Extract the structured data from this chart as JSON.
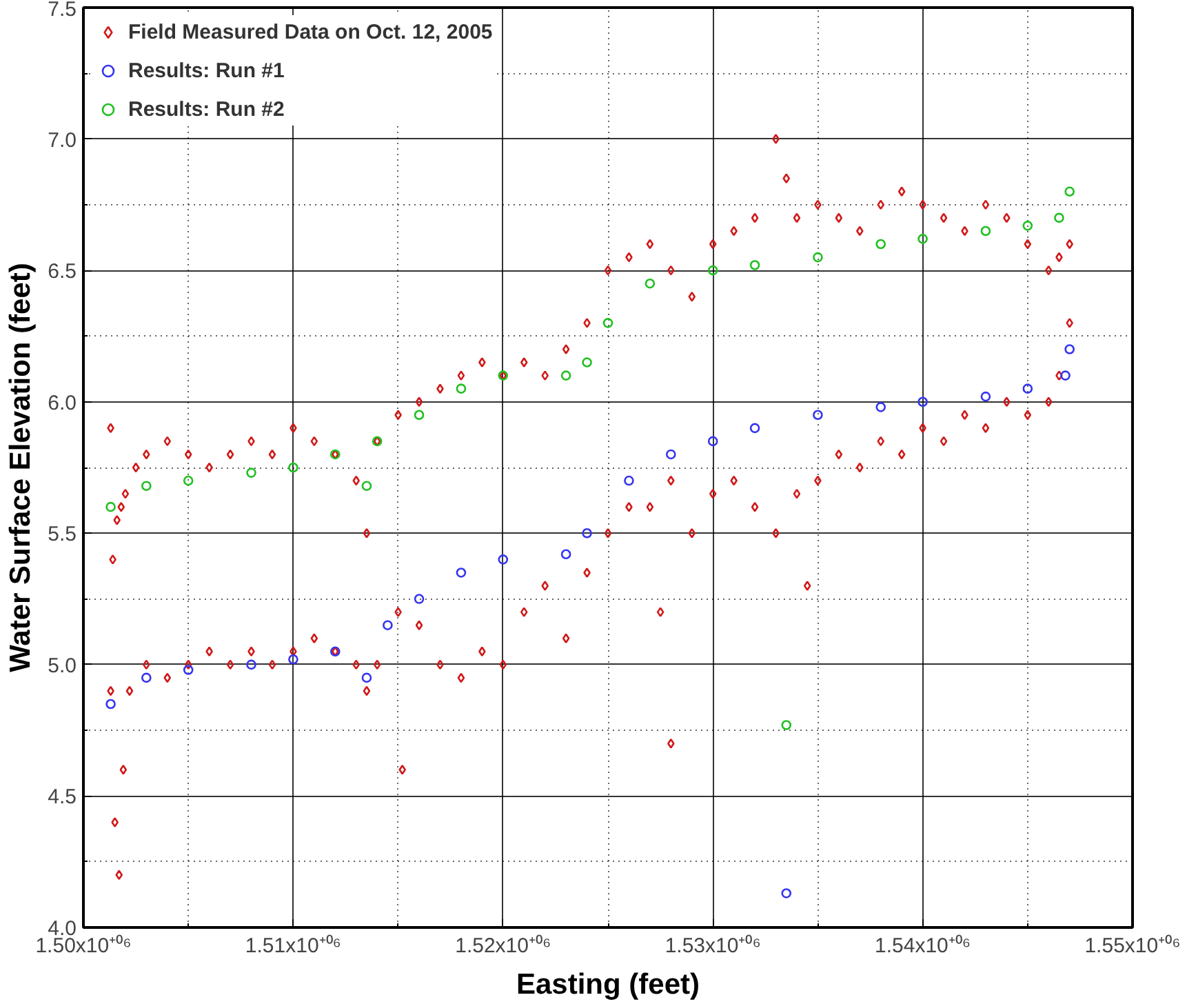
{
  "chart_data": {
    "type": "scatter",
    "xlabel": "Easting (feet)",
    "ylabel": "Water Surface Elevation (feet)",
    "xlim": [
      1500000,
      1550000
    ],
    "ylim": [
      4.0,
      7.5
    ],
    "xticks": [
      {
        "value": 1500000,
        "label": "1.50x10⁺⁰⁶"
      },
      {
        "value": 1510000,
        "label": "1.51x10⁺⁰⁶"
      },
      {
        "value": 1520000,
        "label": "1.52x10⁺⁰⁶"
      },
      {
        "value": 1530000,
        "label": "1.53x10⁺⁰⁶"
      },
      {
        "value": 1540000,
        "label": "1.54x10⁺⁰⁶"
      },
      {
        "value": 1550000,
        "label": "1.55x10⁺⁰⁶"
      }
    ],
    "yticks": [
      {
        "value": 4.0,
        "label": "4.0"
      },
      {
        "value": 4.5,
        "label": "4.5"
      },
      {
        "value": 5.0,
        "label": "5.0"
      },
      {
        "value": 5.5,
        "label": "5.5"
      },
      {
        "value": 6.0,
        "label": "6.0"
      },
      {
        "value": 6.5,
        "label": "6.5"
      },
      {
        "value": 7.0,
        "label": "7.0"
      },
      {
        "value": 7.5,
        "label": "7.5"
      }
    ],
    "grid": true,
    "legend": "top left",
    "marker": "circle",
    "series": [
      {
        "name": "Field Measured Data on Oct. 12, 2005",
        "color": "#d01818",
        "marker": "diamond",
        "x": [
          1501300,
          1501400,
          1501600,
          1501800,
          1502000,
          1502500,
          1503000,
          1504000,
          1505000,
          1506000,
          1507000,
          1508000,
          1509000,
          1510000,
          1511000,
          1512000,
          1513000,
          1513500,
          1514000,
          1515000,
          1516000,
          1517000,
          1518000,
          1519000,
          1520000,
          1521000,
          1522000,
          1523000,
          1524000,
          1525000,
          1526000,
          1527000,
          1528000,
          1529000,
          1530000,
          1531000,
          1532000,
          1533000,
          1533500,
          1534000,
          1535000,
          1536000,
          1537000,
          1538000,
          1539000,
          1540000,
          1541000,
          1542000,
          1543000,
          1544000,
          1545000,
          1546000,
          1546500,
          1547000,
          1501300,
          1501500,
          1501700,
          1501900,
          1502200,
          1503000,
          1504000,
          1505000,
          1506000,
          1507000,
          1508000,
          1509000,
          1510000,
          1511000,
          1512000,
          1513000,
          1513500,
          1514000,
          1515000,
          1516000,
          1517000,
          1518000,
          1519000,
          1520000,
          1521000,
          1522000,
          1523000,
          1524000,
          1525000,
          1526000,
          1527000,
          1528000,
          1529000,
          1530000,
          1531000,
          1532000,
          1533000,
          1534000,
          1535000,
          1536000,
          1537000,
          1538000,
          1539000,
          1540000,
          1541000,
          1542000,
          1543000,
          1544000,
          1545000,
          1546000,
          1546500,
          1547000,
          1515200,
          1528000,
          1527500,
          1534500
        ],
        "values": [
          5.9,
          5.4,
          5.55,
          5.6,
          5.65,
          5.75,
          5.8,
          5.85,
          5.8,
          5.75,
          5.8,
          5.85,
          5.8,
          5.9,
          5.85,
          5.8,
          5.7,
          5.5,
          5.85,
          5.95,
          6.0,
          6.05,
          6.1,
          6.15,
          6.1,
          6.15,
          6.1,
          6.2,
          6.3,
          6.5,
          6.55,
          6.6,
          6.5,
          6.4,
          6.6,
          6.65,
          6.7,
          7.0,
          6.85,
          6.7,
          6.75,
          6.7,
          6.65,
          6.75,
          6.8,
          6.75,
          6.7,
          6.65,
          6.75,
          6.7,
          6.6,
          6.5,
          6.55,
          6.6,
          4.9,
          4.4,
          4.2,
          4.6,
          4.9,
          5.0,
          4.95,
          5.0,
          5.05,
          5.0,
          5.05,
          5.0,
          5.05,
          5.1,
          5.05,
          5.0,
          4.9,
          5.0,
          5.2,
          5.15,
          5.0,
          4.95,
          5.05,
          5.0,
          5.2,
          5.3,
          5.1,
          5.35,
          5.5,
          5.6,
          5.6,
          5.7,
          5.5,
          5.65,
          5.7,
          5.6,
          5.5,
          5.65,
          5.7,
          5.8,
          5.75,
          5.85,
          5.8,
          5.9,
          5.85,
          5.95,
          5.9,
          6.0,
          5.95,
          6.0,
          6.1,
          6.3,
          4.6,
          4.7,
          5.2,
          5.3
        ]
      },
      {
        "name": "Results: Run #1",
        "color": "#3535f0",
        "x": [
          1501300,
          1503000,
          1505000,
          1508000,
          1510000,
          1512000,
          1513500,
          1514500,
          1516000,
          1518000,
          1520000,
          1523000,
          1524000,
          1526000,
          1528000,
          1530000,
          1532000,
          1535000,
          1538000,
          1540000,
          1543000,
          1545000,
          1546800,
          1547000,
          1533500
        ],
        "values": [
          4.85,
          4.95,
          4.98,
          5.0,
          5.02,
          5.05,
          4.95,
          5.15,
          5.25,
          5.35,
          5.4,
          5.42,
          5.5,
          5.7,
          5.8,
          5.85,
          5.9,
          5.95,
          5.98,
          6.0,
          6.02,
          6.05,
          6.1,
          6.2,
          4.13
        ]
      },
      {
        "name": "Results: Run #2",
        "color": "#20c020",
        "x": [
          1501300,
          1503000,
          1505000,
          1508000,
          1510000,
          1512000,
          1513500,
          1514000,
          1516000,
          1518000,
          1520000,
          1523000,
          1524000,
          1525000,
          1527000,
          1530000,
          1532000,
          1535000,
          1538000,
          1540000,
          1543000,
          1545000,
          1546500,
          1547000,
          1533500
        ],
        "values": [
          5.6,
          5.68,
          5.7,
          5.73,
          5.75,
          5.8,
          5.68,
          5.85,
          5.95,
          6.05,
          6.1,
          6.1,
          6.15,
          6.3,
          6.45,
          6.5,
          6.52,
          6.55,
          6.6,
          6.62,
          6.65,
          6.67,
          6.7,
          6.8,
          4.77
        ]
      }
    ]
  }
}
